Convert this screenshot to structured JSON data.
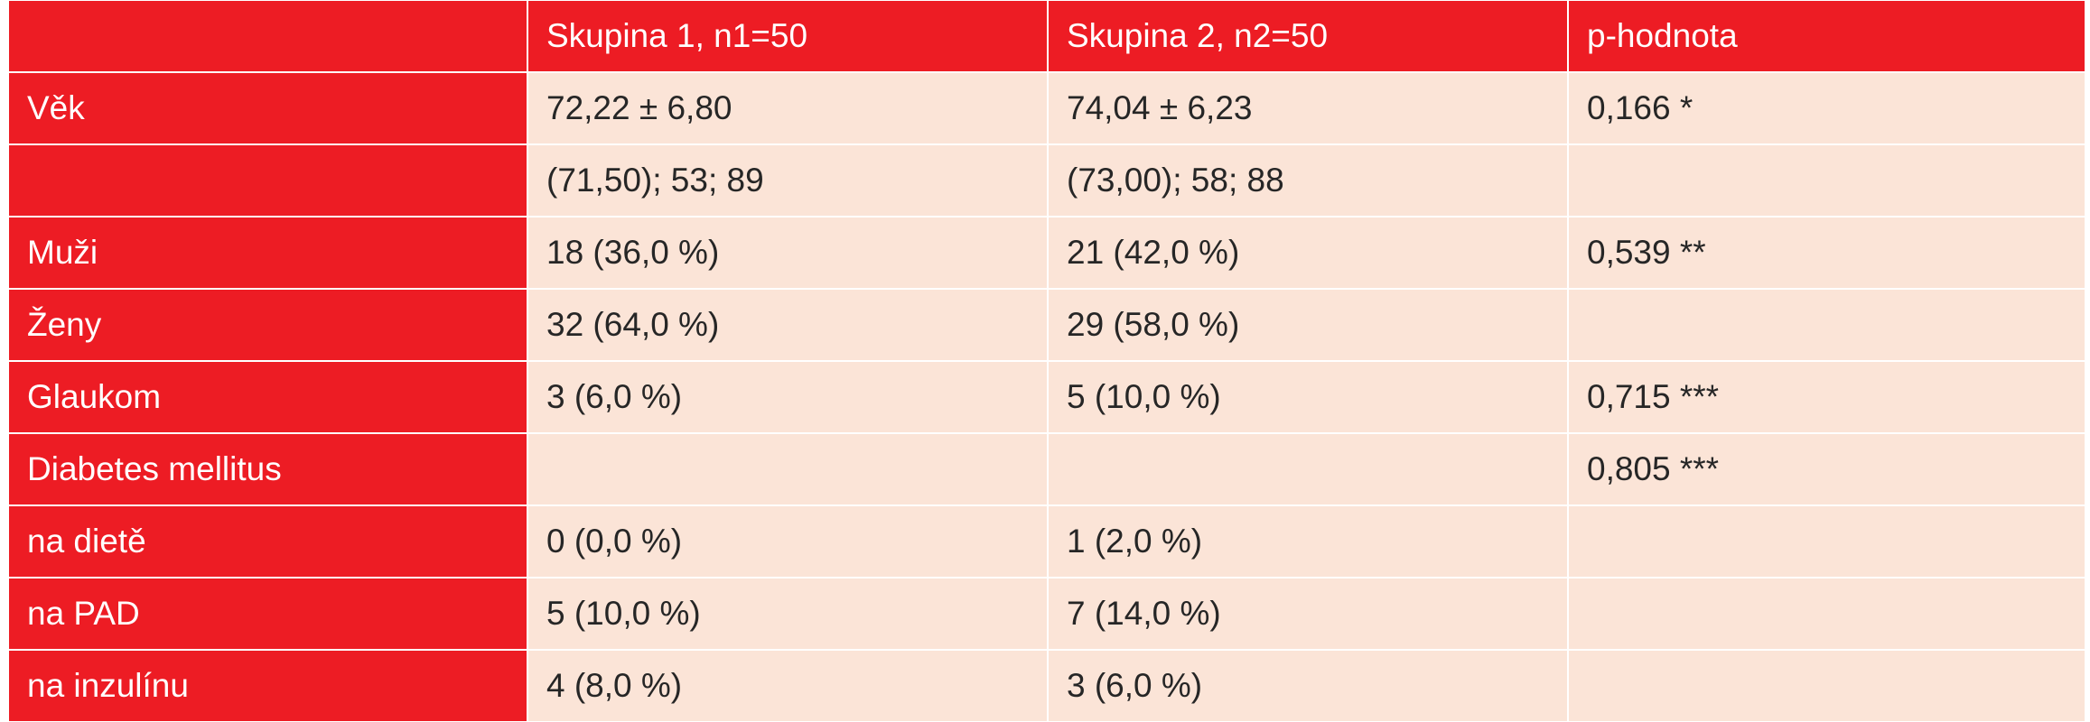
{
  "table": {
    "header": [
      null,
      "Skupina 1, n1=50",
      "Skupina 2, n2=50",
      "p-hodnota"
    ],
    "rows": [
      [
        "Věk",
        "72,22 ± 6,80",
        "74,04 ± 6,23",
        "0,166 *"
      ],
      [
        null,
        "(71,50); 53; 89",
        "(73,00); 58; 88",
        null
      ],
      [
        "Muži",
        "18 (36,0 %)",
        "21 (42,0 %)",
        "0,539 **"
      ],
      [
        "Ženy",
        "32 (64,0 %)",
        "29 (58,0 %)",
        null
      ],
      [
        "Glaukom",
        "3 (6,0 %)",
        "5 (10,0 %)",
        "0,715 ***"
      ],
      [
        "Diabetes mellitus",
        null,
        null,
        "0,805 ***"
      ],
      [
        "na dietě",
        "0 (0,0 %)",
        "1 (2,0 %)",
        null
      ],
      [
        "na PAD",
        "5 (10,0 %)",
        "7 (14,0 %)",
        null
      ],
      [
        "na inzulínu",
        "4 (8,0 %)",
        "3 (6,0 %)",
        null
      ]
    ]
  }
}
